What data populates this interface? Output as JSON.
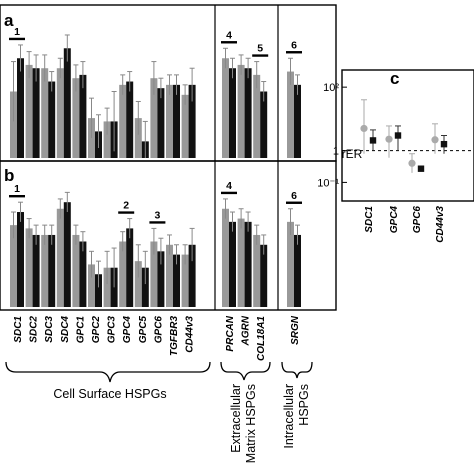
{
  "chart_data": [
    {
      "panel": "a",
      "type": "bar",
      "groups": [
        {
          "genes": [
            "SDC1",
            "SDC2",
            "SDC3",
            "SDC4",
            "GPC1",
            "GPC2",
            "GPC3",
            "GPC4",
            "GPC5",
            "GPC6",
            "TGFBR3",
            "CD44v3"
          ],
          "grey": [
            2.0,
            2.8,
            2.7,
            2.7,
            2.4,
            1.2,
            1.1,
            2.2,
            1.2,
            2.4,
            2.2,
            1.9
          ],
          "black": [
            3.0,
            2.7,
            2.3,
            3.3,
            2.5,
            0.8,
            1.1,
            2.3,
            0.5,
            2.1,
            2.2,
            2.2
          ],
          "grey_err": [
            0.9,
            0.4,
            0.4,
            0.3,
            0.4,
            0.6,
            0.4,
            0.3,
            0.5,
            0.5,
            0.3,
            0.3
          ],
          "black_err": [
            0.4,
            0.4,
            0.3,
            0.4,
            0.4,
            0.5,
            0.9,
            0.3,
            0.6,
            0.3,
            0.3,
            0.5
          ]
        },
        {
          "genes": [
            "PRCAN",
            "AGRN",
            "COL18A1"
          ],
          "grey": [
            3.0,
            2.8,
            2.5
          ],
          "black": [
            2.7,
            2.7,
            2.0
          ],
          "grey_err": [
            0.3,
            0.3,
            0.4
          ],
          "black_err": [
            0.3,
            0.3,
            0.3
          ]
        },
        {
          "genes": [
            "SRGN"
          ],
          "grey": [
            2.6
          ],
          "black": [
            2.2
          ],
          "grey_err": [
            0.4
          ],
          "black_err": [
            0.3
          ]
        }
      ],
      "ylim": [
        0,
        4
      ],
      "significance": [
        {
          "label": "1",
          "gene": "SDC1"
        },
        {
          "label": "4",
          "gene": "PRCAN"
        },
        {
          "label": "5",
          "gene": "COL18A1"
        },
        {
          "label": "6",
          "gene": "SRGN"
        }
      ]
    },
    {
      "panel": "b",
      "type": "bar",
      "groups": [
        {
          "genes": [
            "SDC1",
            "SDC2",
            "SDC3",
            "SDC4",
            "GPC1",
            "GPC2",
            "GPC3",
            "GPC4",
            "GPC5",
            "GPC6",
            "TGFBR3",
            "CD44v3"
          ],
          "grey": [
            2.5,
            2.4,
            2.2,
            3.0,
            2.2,
            1.3,
            1.2,
            2.0,
            1.4,
            2.0,
            1.9,
            1.6
          ],
          "black": [
            2.9,
            2.2,
            2.2,
            3.2,
            2.0,
            1.0,
            1.2,
            2.4,
            1.2,
            1.7,
            1.6,
            1.9
          ],
          "grey_err": [
            0.4,
            0.3,
            0.3,
            0.3,
            0.3,
            0.4,
            0.5,
            0.3,
            0.5,
            0.4,
            0.3,
            0.3
          ],
          "black_err": [
            0.3,
            0.3,
            0.3,
            0.3,
            0.3,
            0.4,
            0.6,
            0.3,
            0.5,
            0.4,
            0.3,
            0.5
          ]
        },
        {
          "genes": [
            "PRCAN",
            "AGRN",
            "COL18A1"
          ],
          "grey": [
            3.0,
            2.7,
            2.2
          ],
          "black": [
            2.6,
            2.6,
            1.9
          ],
          "grey_err": [
            0.3,
            0.3,
            0.3
          ],
          "black_err": [
            0.3,
            0.3,
            0.3
          ]
        },
        {
          "genes": [
            "SRGN"
          ],
          "grey": [
            2.6
          ],
          "black": [
            2.2
          ],
          "grey_err": [
            0.4
          ],
          "black_err": [
            0.3
          ]
        }
      ],
      "ylim": [
        0,
        4
      ],
      "significance": [
        {
          "label": "1",
          "gene": "SDC1"
        },
        {
          "label": "2",
          "gene": "GPC4"
        },
        {
          "label": "3",
          "gene": "GPC6"
        },
        {
          "label": "4",
          "gene": "PRCAN"
        },
        {
          "label": "6",
          "gene": "SRGN"
        }
      ]
    },
    {
      "panel": "c",
      "type": "scatter",
      "ylabel": "rER",
      "yscale": "log",
      "ylim": [
        0.03,
        300
      ],
      "yticks": [
        "10²",
        "1",
        "10⁻¹"
      ],
      "reference_line": 1,
      "categories": [
        "SDC1",
        "GPC4",
        "GPC6",
        "CD44v3"
      ],
      "grey": {
        "values": [
          5.0,
          2.3,
          0.4,
          2.2
        ],
        "err_lo": [
          0.8,
          0.6,
          0.2,
          0.8
        ],
        "err_hi": [
          40,
          6.0,
          0.8,
          7.0
        ]
      },
      "black": {
        "values": [
          2.1,
          3.0,
          0.27,
          1.6
        ],
        "err_lo": [
          1.0,
          1.0,
          0.27,
          0.8
        ],
        "err_hi": [
          4.5,
          6.0,
          0.27,
          3.0
        ]
      }
    }
  ],
  "panel_labels": {
    "a": "a",
    "b": "b",
    "c": "c"
  },
  "group_labels": {
    "cell_surface": "Cell Surface HSPGs",
    "ecm": [
      "Extracellular",
      "Matrix HSPGs"
    ],
    "intracellular": [
      "Intracellular",
      "HSPGs"
    ]
  },
  "colors": {
    "grey": "#999999",
    "black": "#111111",
    "error": "#888888"
  }
}
